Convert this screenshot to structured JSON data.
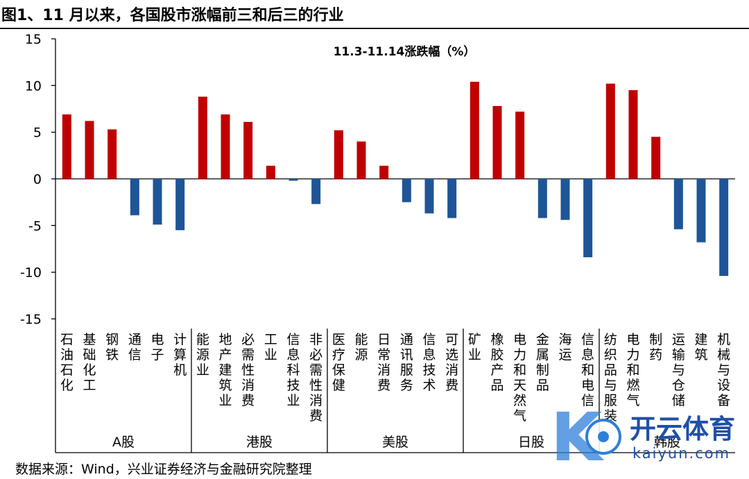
{
  "figure_title": "图1、11 月以来，各国股市涨幅前三和后三的行业",
  "source_note": "数据来源：Wind，兴业证券经济与金融研究院整理",
  "watermark": {
    "brand": "开云体育",
    "url": "kaiyun.com",
    "emblem": "K"
  },
  "colors": {
    "positive": "#c00000",
    "negative": "#1f5597",
    "axis": "#000000"
  },
  "chart_data": {
    "type": "bar",
    "title": "11.3-11.14涨跌幅（%）",
    "ylim": [
      -15,
      15
    ],
    "yticks": [
      15,
      10,
      5,
      0,
      -5,
      -10,
      -15
    ],
    "ytick_labels": [
      "15",
      "10",
      "5",
      "0",
      "-5",
      "-10",
      "-15"
    ],
    "groups": [
      {
        "name": "A股",
        "categories": [
          "石油石化",
          "基础化工",
          "钢铁",
          "通信",
          "电子",
          "计算机"
        ],
        "values": [
          6.9,
          6.2,
          5.3,
          -3.9,
          -4.9,
          -5.5
        ]
      },
      {
        "name": "港股",
        "categories": [
          "能源业",
          "地产建筑业",
          "必需性消费",
          "工业",
          "信息科技业",
          "非必需性消费"
        ],
        "values": [
          8.8,
          6.9,
          6.1,
          1.4,
          -0.2,
          -2.7
        ]
      },
      {
        "name": "美股",
        "categories": [
          "医疗保健",
          "能源",
          "日常消费",
          "通讯服务",
          "信息技术",
          "可选消费"
        ],
        "values": [
          5.2,
          4.0,
          1.4,
          -2.5,
          -3.7,
          -4.2
        ]
      },
      {
        "name": "日股",
        "categories": [
          "矿业",
          "橡胶产品",
          "电力和天然气",
          "金属制品",
          "海运",
          "信息和电信"
        ],
        "values": [
          10.4,
          7.8,
          7.2,
          -4.2,
          -4.4,
          -8.4
        ]
      },
      {
        "name": "韩股",
        "categories": [
          "纺织品与服装",
          "电力和燃气",
          "制药",
          "运输与仓储",
          "建筑",
          "机械与设备"
        ],
        "values": [
          10.2,
          9.5,
          4.5,
          -5.4,
          -6.8,
          -10.4
        ]
      }
    ]
  }
}
